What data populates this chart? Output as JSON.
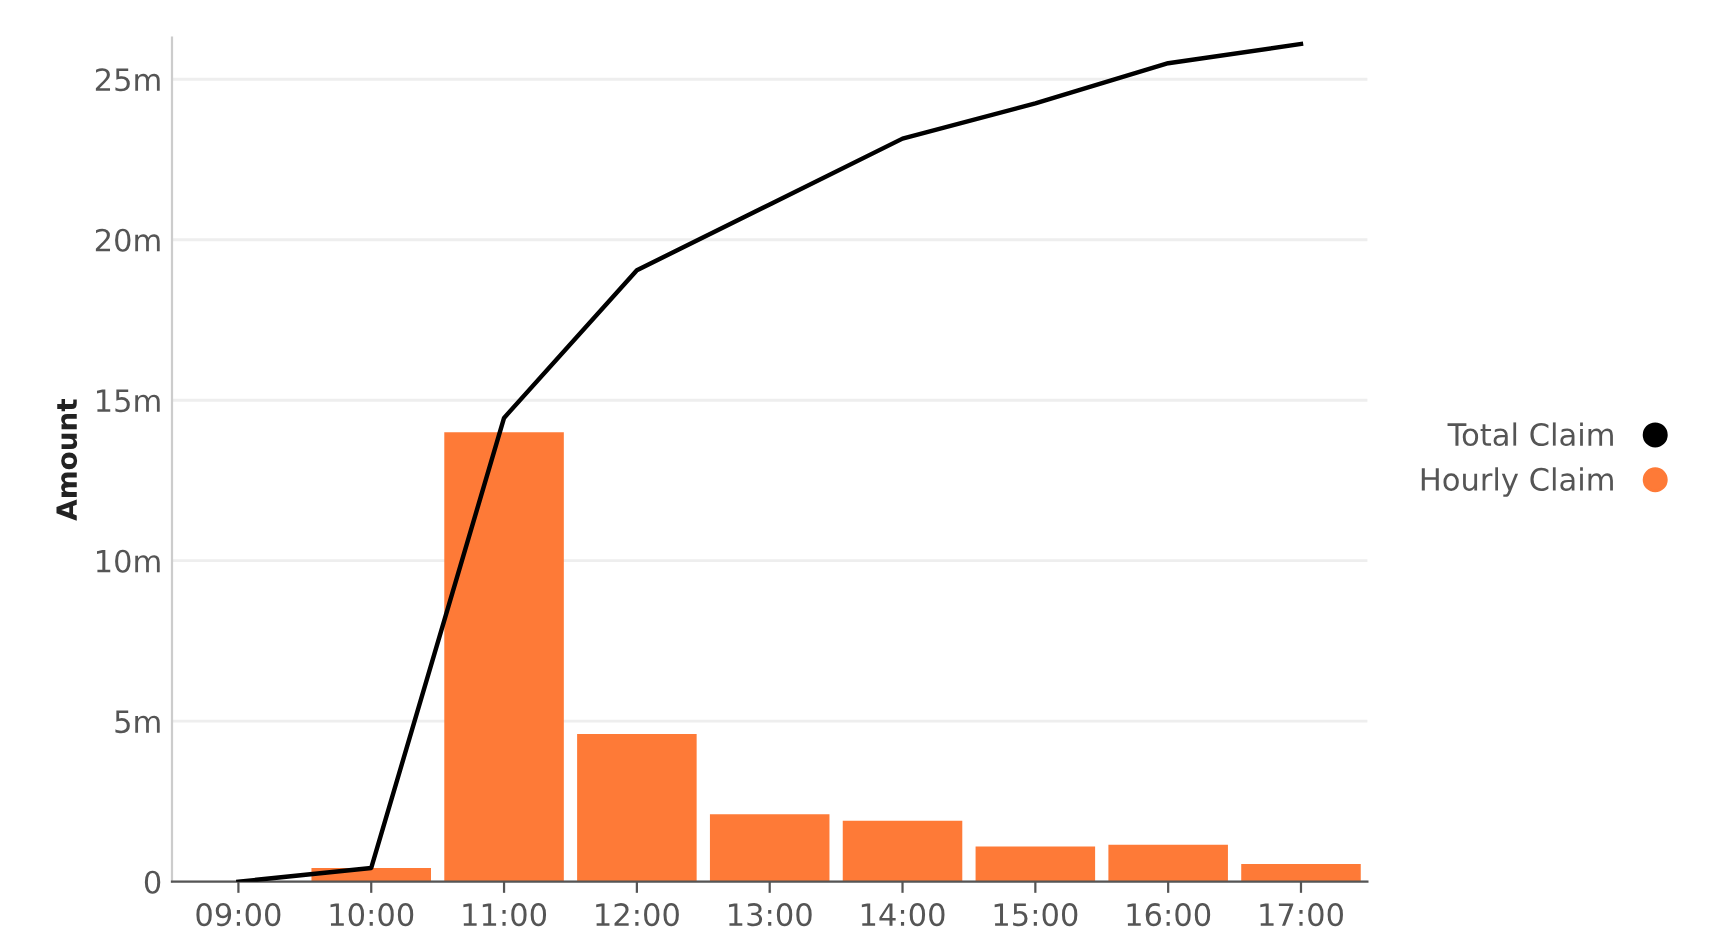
{
  "chart_data": {
    "type": "bar",
    "ylabel": "Amount",
    "categories": [
      "09:00",
      "10:00",
      "11:00",
      "12:00",
      "13:00",
      "14:00",
      "15:00",
      "16:00",
      "17:00"
    ],
    "series": [
      {
        "name": "Total Claim",
        "type": "line",
        "color": "#000000",
        "values": [
          0,
          0.43,
          14.45,
          19.05,
          21.1,
          23.15,
          24.25,
          25.5,
          26.1
        ]
      },
      {
        "name": "Hourly Claim",
        "color": "#fe7a37",
        "values": [
          0,
          0.43,
          14.0,
          4.6,
          2.1,
          1.9,
          1.1,
          1.15,
          0.55
        ]
      }
    ],
    "ylim": [
      0,
      26.3
    ],
    "yticks": [
      0,
      {
        "value": 5,
        "label": "5m"
      },
      {
        "value": 10,
        "label": "10m"
      },
      {
        "value": 15,
        "label": "15m"
      },
      {
        "value": 20,
        "label": "20m"
      },
      {
        "value": 25,
        "label": "25m"
      }
    ],
    "grid": "y",
    "legend": "right",
    "marker": "none"
  }
}
